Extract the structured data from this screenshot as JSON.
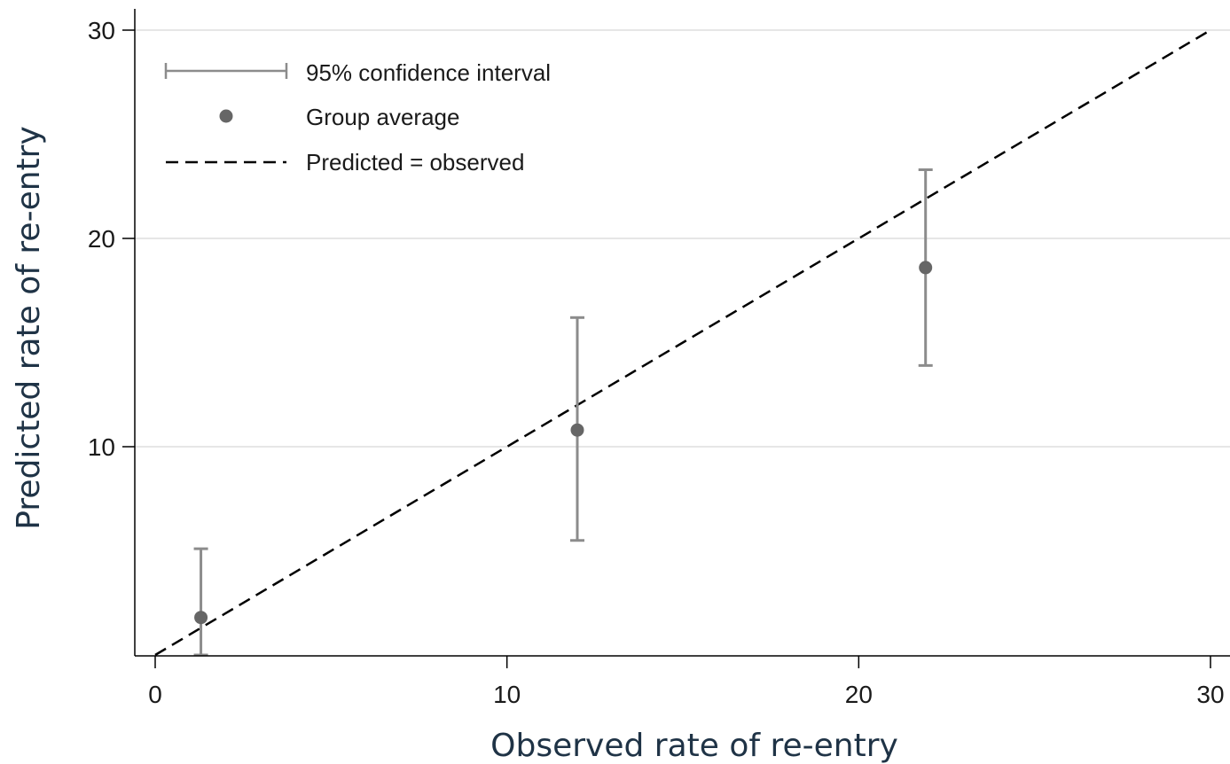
{
  "chart_data": {
    "type": "scatter",
    "title": "",
    "xlabel": "Observed rate of re-entry",
    "ylabel": "Predicted rate of re-entry",
    "xlim": [
      0,
      30
    ],
    "ylim": [
      0,
      30
    ],
    "x_ticks": [
      "0",
      "10",
      "20",
      "30"
    ],
    "y_ticks": [
      "10",
      "20",
      "30"
    ],
    "grid": "horizontal",
    "legend_position": "top-left",
    "series": [
      {
        "name": "Group average",
        "type": "errorbar",
        "points": [
          {
            "x": 1.3,
            "y": 1.8,
            "ci_low": 0.0,
            "ci_high": 5.1
          },
          {
            "x": 12.0,
            "y": 10.8,
            "ci_low": 5.5,
            "ci_high": 16.2
          },
          {
            "x": 21.9,
            "y": 18.6,
            "ci_low": 13.9,
            "ci_high": 23.3
          }
        ]
      },
      {
        "name": "Predicted = observed",
        "type": "line",
        "style": "dashed",
        "x": [
          0,
          30
        ],
        "y": [
          0,
          30
        ]
      }
    ],
    "legend": [
      {
        "label": "95% confidence interval",
        "symbol": "errorbar"
      },
      {
        "label": "Group average",
        "symbol": "dot"
      },
      {
        "label": "Predicted = observed",
        "symbol": "dashed-line"
      }
    ],
    "colors": {
      "marker": "#666666",
      "errorbar": "#8c8c8c",
      "reference_line": "#000000",
      "grid": "#e6e6e6",
      "axis": "#000000"
    }
  }
}
